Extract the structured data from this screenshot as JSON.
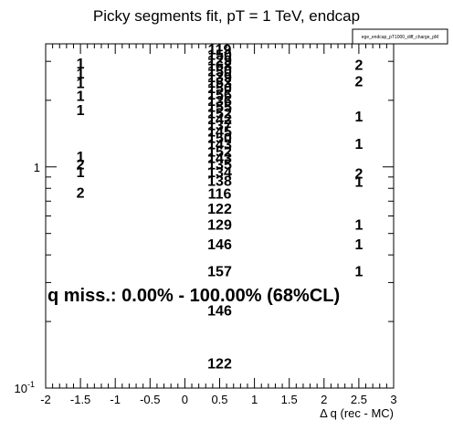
{
  "chart_data": {
    "type": "histogram-text",
    "title": "Picky segments fit, pT = 1 TeV, endcap",
    "xlabel": "Δ q (rec - MC)",
    "ylabel": "",
    "xlim": [
      -2,
      3
    ],
    "ylim": [
      0.1,
      3.6
    ],
    "yscale": "log",
    "legend": {
      "label": "ege_endcap_pT1000_diff_charge_pM",
      "placement": "top-right"
    },
    "x_tick_labels": [
      "-2",
      "-1.5",
      "-1",
      "-0.5",
      "0",
      "0.5",
      "1",
      "1.5",
      "2",
      "2.5",
      "3"
    ],
    "x_ticks": [
      -2,
      -1.5,
      -1,
      -0.5,
      0,
      0.5,
      1,
      1.5,
      2,
      2.5,
      3
    ],
    "y_ticks": [
      {
        "value": 0.1,
        "label": "10",
        "exponent": "-1"
      },
      {
        "value": 1,
        "label": "1",
        "exponent": ""
      }
    ],
    "annotation": "q miss.: 0.00% - 100.00% (68%CL)",
    "bins": [
      {
        "x": -1.5,
        "y": 2.95,
        "label": "1"
      },
      {
        "x": -1.5,
        "y": 2.65,
        "label": "1"
      },
      {
        "x": -1.5,
        "y": 2.4,
        "label": "1"
      },
      {
        "x": -1.5,
        "y": 2.1,
        "label": "1"
      },
      {
        "x": -1.5,
        "y": 1.82,
        "label": "1"
      },
      {
        "x": -1.5,
        "y": 1.12,
        "label": "1"
      },
      {
        "x": -1.5,
        "y": 1.03,
        "label": "2"
      },
      {
        "x": -1.5,
        "y": 0.95,
        "label": "1"
      },
      {
        "x": -1.5,
        "y": 0.77,
        "label": "2"
      },
      {
        "x": 0.5,
        "y": 3.42,
        "label": "119"
      },
      {
        "x": 0.5,
        "y": 3.22,
        "label": "150"
      },
      {
        "x": 0.5,
        "y": 3.05,
        "label": "129"
      },
      {
        "x": 0.5,
        "y": 2.88,
        "label": "168"
      },
      {
        "x": 0.5,
        "y": 2.72,
        "label": "150"
      },
      {
        "x": 0.5,
        "y": 2.56,
        "label": "139"
      },
      {
        "x": 0.5,
        "y": 2.42,
        "label": "153"
      },
      {
        "x": 0.5,
        "y": 2.28,
        "label": "150"
      },
      {
        "x": 0.5,
        "y": 2.13,
        "label": "156"
      },
      {
        "x": 0.5,
        "y": 2.0,
        "label": "136"
      },
      {
        "x": 0.5,
        "y": 1.88,
        "label": "155"
      },
      {
        "x": 0.5,
        "y": 1.76,
        "label": "152"
      },
      {
        "x": 0.5,
        "y": 1.65,
        "label": "142"
      },
      {
        "x": 0.5,
        "y": 1.55,
        "label": "137"
      },
      {
        "x": 0.5,
        "y": 1.45,
        "label": "145"
      },
      {
        "x": 0.5,
        "y": 1.36,
        "label": "150"
      },
      {
        "x": 0.5,
        "y": 1.27,
        "label": "143"
      },
      {
        "x": 0.5,
        "y": 1.18,
        "label": "152"
      },
      {
        "x": 0.5,
        "y": 1.1,
        "label": "143"
      },
      {
        "x": 0.5,
        "y": 1.03,
        "label": "135"
      },
      {
        "x": 0.5,
        "y": 0.95,
        "label": "134"
      },
      {
        "x": 0.5,
        "y": 0.87,
        "label": "138"
      },
      {
        "x": 0.5,
        "y": 0.76,
        "label": "116"
      },
      {
        "x": 0.5,
        "y": 0.65,
        "label": "122"
      },
      {
        "x": 0.5,
        "y": 0.55,
        "label": "129"
      },
      {
        "x": 0.5,
        "y": 0.45,
        "label": "146"
      },
      {
        "x": 0.5,
        "y": 0.34,
        "label": "157"
      },
      {
        "x": 0.5,
        "y": 0.225,
        "label": "146"
      },
      {
        "x": 0.5,
        "y": 0.13,
        "label": "122"
      },
      {
        "x": 2.5,
        "y": 2.9,
        "label": "2"
      },
      {
        "x": 2.5,
        "y": 2.45,
        "label": "2"
      },
      {
        "x": 2.5,
        "y": 1.7,
        "label": "1"
      },
      {
        "x": 2.5,
        "y": 1.28,
        "label": "1"
      },
      {
        "x": 2.5,
        "y": 0.94,
        "label": "2"
      },
      {
        "x": 2.5,
        "y": 0.86,
        "label": "1"
      },
      {
        "x": 2.5,
        "y": 0.55,
        "label": "1"
      },
      {
        "x": 2.5,
        "y": 0.45,
        "label": "1"
      },
      {
        "x": 2.5,
        "y": 0.34,
        "label": "1"
      }
    ]
  }
}
